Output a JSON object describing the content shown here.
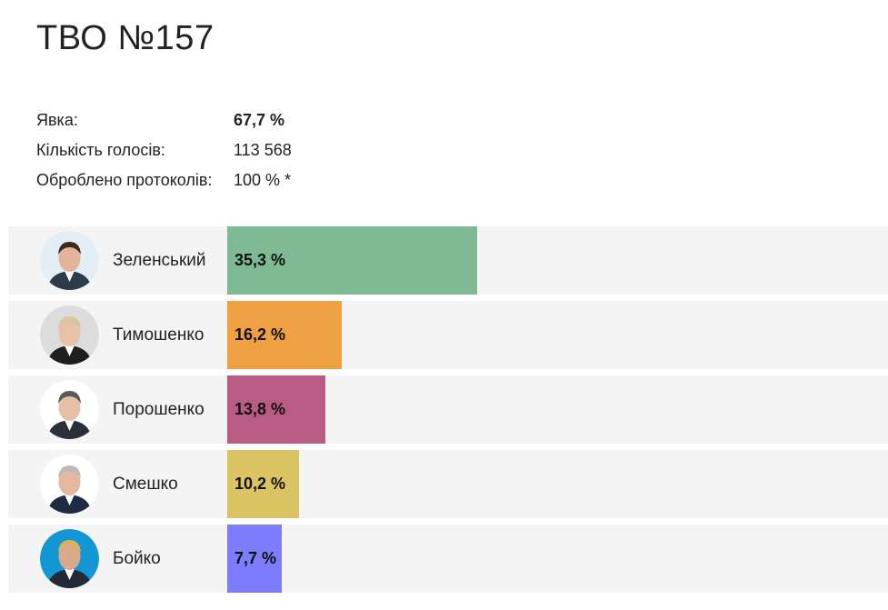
{
  "header": {
    "title": "ТВО №157"
  },
  "stats": [
    {
      "label": "Явка:",
      "value": "67,7 %",
      "bold": true
    },
    {
      "label": "Кількість голосів:",
      "value": "113 568",
      "bold": false
    },
    {
      "label": "Оброблено протоколів:",
      "value": "100 % *",
      "bold": false
    }
  ],
  "chart_data": {
    "type": "bar",
    "orientation": "horizontal",
    "categories": [
      "Зеленський",
      "Тимошенко",
      "Порошенко",
      "Смешко",
      "Бойко"
    ],
    "values": [
      35.3,
      16.2,
      13.8,
      10.2,
      7.7
    ],
    "value_labels": [
      "35,3 %",
      "16,2 %",
      "13,8 %",
      "10,2 %",
      "7,7 %"
    ],
    "colors": [
      "#7fba94",
      "#eea043",
      "#b95c84",
      "#dcc464",
      "#7c7cfc"
    ],
    "icons": [
      "zelenskyi-photo-icon",
      "tymoshenko-photo-icon",
      "poroshenko-photo-icon",
      "smeshko-photo-icon",
      "boiko-photo-icon"
    ],
    "xlim": [
      0,
      100
    ],
    "grid": false
  }
}
